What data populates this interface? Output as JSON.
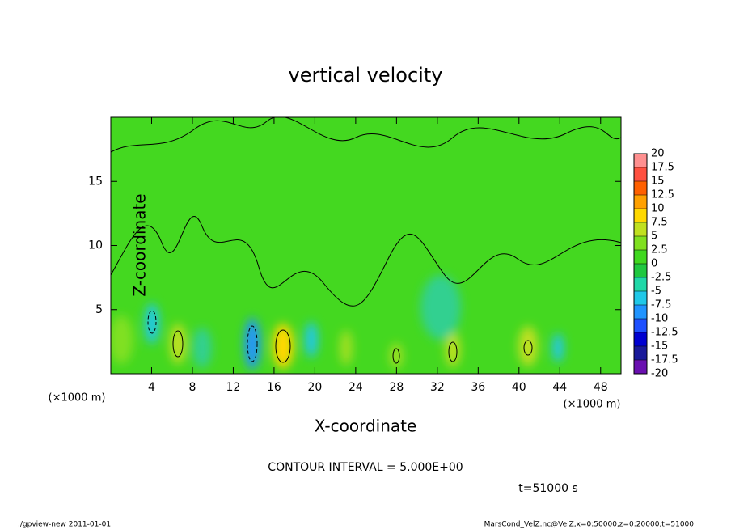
{
  "chart_data": {
    "type": "contour",
    "title": "vertical velocity",
    "xlabel": "X-coordinate",
    "ylabel": "Z-coordinate",
    "x_unit_label": "(×1000 m)",
    "xlim": [
      0,
      50
    ],
    "xticks": [
      4,
      8,
      12,
      16,
      20,
      24,
      28,
      32,
      36,
      40,
      44,
      48
    ],
    "ylim": [
      0,
      20
    ],
    "yticks": [
      5,
      10,
      15
    ],
    "contour_interval_label": "CONTOUR INTERVAL = 5.000E+00",
    "time_label": "t=51000 s",
    "colorbar": {
      "levels": [
        -20,
        -17.5,
        -15,
        -12.5,
        -10,
        -7.5,
        -5,
        -2.5,
        0,
        2.5,
        5,
        7.5,
        10,
        12.5,
        15,
        17.5,
        20
      ],
      "colors": [
        "#6a10b0",
        "#1a1a9a",
        "#0000d0",
        "#1e50ff",
        "#2094ff",
        "#20c8e8",
        "#20d8a8",
        "#20c840",
        "#40d820",
        "#80e020",
        "#c0e020",
        "#ffd800",
        "#ffa000",
        "#ff6000",
        "#ff5040",
        "#ff9090"
      ]
    },
    "footer_left": "./gpview-new  2011-01-01",
    "footer_right": "MarsCond_VelZ.nc@VelZ,x=0:50000,z=0:20000,t=51000"
  }
}
